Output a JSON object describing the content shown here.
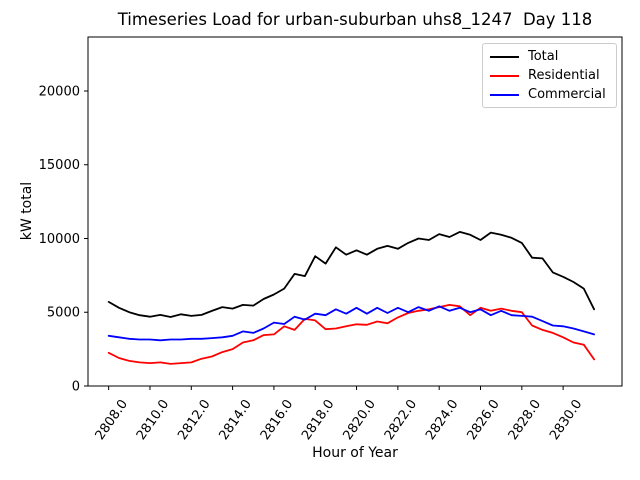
{
  "chart_data": {
    "type": "line",
    "title": "Timeseries Load for urban-suburban uhs8_1247  Day 118",
    "xlabel": "Hour of Year",
    "ylabel": "kW total",
    "xlim": [
      2807.0,
      2832.85
    ],
    "ylim": [
      0,
      23660
    ],
    "xticks": [
      2808,
      2810,
      2812,
      2814,
      2816,
      2818,
      2820,
      2822,
      2824,
      2826,
      2828,
      2830
    ],
    "xtick_labels": [
      "2808.0",
      "2810.0",
      "2812.0",
      "2814.0",
      "2816.0",
      "2818.0",
      "2820.0",
      "2822.0",
      "2824.0",
      "2826.0",
      "2828.0",
      "2830.0"
    ],
    "yticks": [
      0,
      5000,
      10000,
      15000,
      20000
    ],
    "ytick_labels": [
      "0",
      "5000",
      "10000",
      "15000",
      "20000"
    ],
    "xtick_rotation_deg": 55,
    "grid": false,
    "legend": {
      "position": "upper right"
    },
    "x": [
      2808.0,
      2808.5,
      2809.0,
      2809.5,
      2810.0,
      2810.5,
      2811.0,
      2811.5,
      2812.0,
      2812.5,
      2813.0,
      2813.5,
      2814.0,
      2814.5,
      2815.0,
      2815.5,
      2816.0,
      2816.5,
      2817.0,
      2817.5,
      2818.0,
      2818.5,
      2819.0,
      2819.5,
      2820.0,
      2820.5,
      2821.0,
      2821.5,
      2822.0,
      2822.5,
      2823.0,
      2823.5,
      2824.0,
      2824.5,
      2825.0,
      2825.5,
      2826.0,
      2826.5,
      2827.0,
      2827.5,
      2828.0,
      2828.5,
      2829.0,
      2829.5,
      2830.0,
      2830.5,
      2831.0,
      2831.5
    ],
    "series": [
      {
        "name": "Total",
        "color": "#000000",
        "values": [
          5700,
          5300,
          5000,
          4800,
          4700,
          4820,
          4680,
          4860,
          4750,
          4820,
          5090,
          5350,
          5250,
          5500,
          5450,
          5900,
          6200,
          6600,
          7600,
          7450,
          8800,
          8300,
          9400,
          8900,
          9200,
          8900,
          9300,
          9500,
          9300,
          9700,
          10000,
          9900,
          10300,
          10100,
          10450,
          10250,
          9900,
          10400,
          10250,
          10050,
          9700,
          8700,
          8650,
          7700,
          7400,
          7050,
          6600,
          5200
        ]
      },
      {
        "name": "Residential",
        "color": "#ff0000",
        "values": [
          2250,
          1900,
          1700,
          1600,
          1550,
          1600,
          1500,
          1550,
          1600,
          1850,
          2000,
          2300,
          2500,
          2950,
          3100,
          3450,
          3500,
          4050,
          3800,
          4550,
          4450,
          3850,
          3900,
          4050,
          4180,
          4150,
          4370,
          4250,
          4650,
          4950,
          5100,
          5200,
          5350,
          5500,
          5400,
          4800,
          5300,
          5100,
          5250,
          5100,
          5000,
          4100,
          3800,
          3600,
          3300,
          2950,
          2800,
          1800
        ]
      },
      {
        "name": "Commercial",
        "color": "#0000ff",
        "values": [
          3400,
          3300,
          3200,
          3150,
          3150,
          3100,
          3150,
          3150,
          3200,
          3200,
          3250,
          3300,
          3400,
          3700,
          3600,
          3900,
          4300,
          4200,
          4700,
          4500,
          4900,
          4800,
          5200,
          4900,
          5300,
          4900,
          5300,
          4950,
          5300,
          5000,
          5350,
          5100,
          5400,
          5100,
          5300,
          5000,
          5200,
          4800,
          5100,
          4800,
          4750,
          4700,
          4400,
          4100,
          4050,
          3900,
          3700,
          3500
        ]
      }
    ]
  }
}
